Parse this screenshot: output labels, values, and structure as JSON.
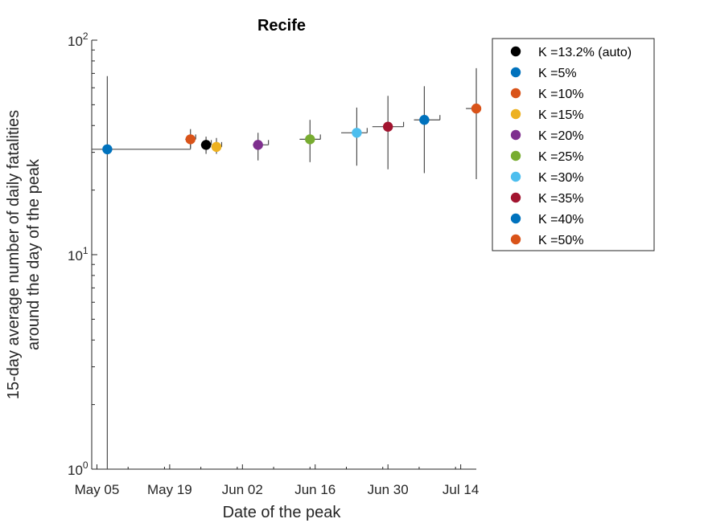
{
  "chart_data": {
    "type": "scatter",
    "title": "Recife",
    "xlabel": "Date of the peak",
    "ylabel_lines": [
      "15-day average number of daily fatalities",
      "around the day of the peak"
    ],
    "yscale": "log",
    "ylim": [
      1,
      100
    ],
    "y_ticks": [
      {
        "value": 1,
        "base": "10",
        "exp": "0"
      },
      {
        "value": 10,
        "base": "10",
        "exp": "1"
      },
      {
        "value": 100,
        "base": "10",
        "exp": "2"
      }
    ],
    "xlim": [
      "2020-05-04",
      "2020-07-17"
    ],
    "x_ticks": [
      {
        "date": "2020-05-05",
        "label": "May 05"
      },
      {
        "date": "2020-05-19",
        "label": "May 19"
      },
      {
        "date": "2020-06-02",
        "label": "Jun 02"
      },
      {
        "date": "2020-06-16",
        "label": "Jun 16"
      },
      {
        "date": "2020-06-30",
        "label": "Jun 30"
      },
      {
        "date": "2020-07-14",
        "label": "Jul 14"
      }
    ],
    "legend_position": "outside-right",
    "series": [
      {
        "name": "K =13.2% (auto)",
        "color": "#000000",
        "date": "2020-05-26",
        "y": 32.5,
        "y_low": 29.5,
        "y_high": 35.5,
        "x_err_low": "2020-05-25",
        "x_err_high": "2020-05-27"
      },
      {
        "name": "K =5%",
        "color": "#0072BD",
        "date": "2020-05-07",
        "y": 31,
        "y_low": 1,
        "y_high": 68,
        "x_err_low": "2020-05-04",
        "x_err_high": "2020-05-23"
      },
      {
        "name": "K =10%",
        "color": "#D95319",
        "date": "2020-05-23",
        "y": 34.5,
        "y_low": 31.5,
        "y_high": 38.5,
        "x_err_low": "2020-05-22",
        "x_err_high": "2020-05-24"
      },
      {
        "name": "K =15%",
        "color": "#EDB120",
        "date": "2020-05-28",
        "y": 31.8,
        "y_low": 29.5,
        "y_high": 35,
        "x_err_low": "2020-05-27",
        "x_err_high": "2020-05-29"
      },
      {
        "name": "K =20%",
        "color": "#7E2F8E",
        "date": "2020-06-05",
        "y": 32.5,
        "y_low": 27.5,
        "y_high": 37,
        "x_err_low": "2020-06-04",
        "x_err_high": "2020-06-07"
      },
      {
        "name": "K =25%",
        "color": "#77AC30",
        "date": "2020-06-15",
        "y": 34.5,
        "y_low": 27,
        "y_high": 42.5,
        "x_err_low": "2020-06-13",
        "x_err_high": "2020-06-17"
      },
      {
        "name": "K =30%",
        "color": "#4DBEEE",
        "date": "2020-06-24",
        "y": 37,
        "y_low": 26,
        "y_high": 48.5,
        "x_err_low": "2020-06-21",
        "x_err_high": "2020-06-26"
      },
      {
        "name": "K =35%",
        "color": "#A2142F",
        "date": "2020-06-30",
        "y": 39.5,
        "y_low": 25,
        "y_high": 55,
        "x_err_low": "2020-06-27",
        "x_err_high": "2020-07-03"
      },
      {
        "name": "K =40%",
        "color": "#0072BD",
        "date": "2020-07-07",
        "y": 42.5,
        "y_low": 24,
        "y_high": 61,
        "x_err_low": "2020-07-05",
        "x_err_high": "2020-07-10"
      },
      {
        "name": "K =50%",
        "color": "#D95319",
        "date": "2020-07-18",
        "y": 48,
        "y_low": 22.5,
        "y_high": 74,
        "x_err_low": "2020-07-15",
        "x_err_high": "2020-07-18"
      }
    ]
  }
}
